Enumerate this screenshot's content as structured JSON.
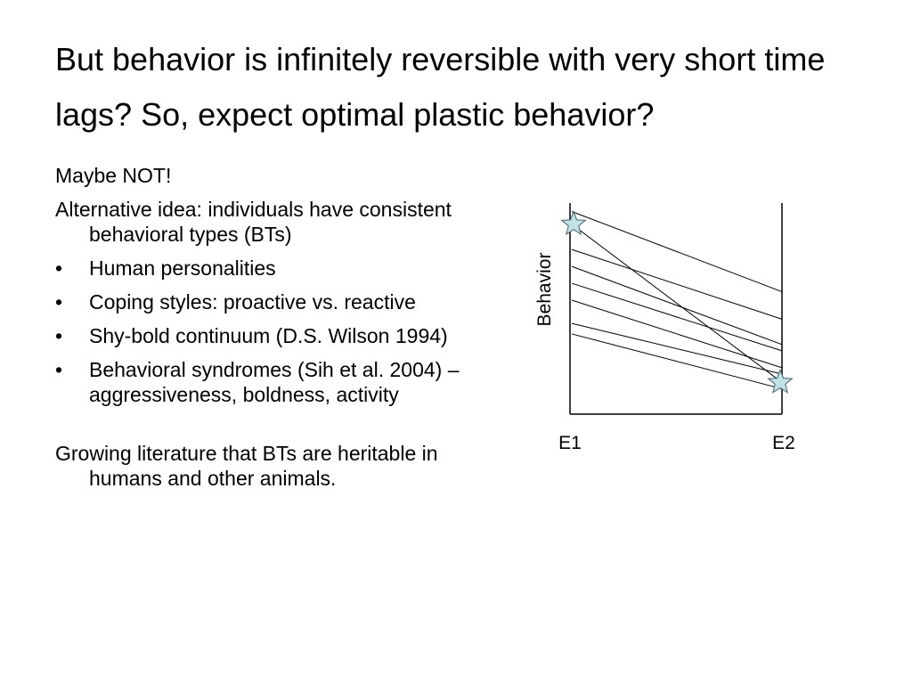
{
  "slide": {
    "title": "But behavior is infinitely reversible with very short time lags? So, expect optimal plastic behavior?"
  },
  "body": {
    "intro": "Maybe NOT!",
    "alternative": "Alternative idea: individuals have consistent behavioral types (BTs)",
    "bullet_symbol": "•",
    "bullets": [
      "Human personalities",
      "Coping styles: proactive vs. reactive",
      "Shy-bold continuum (D.S. Wilson 1994)",
      "Behavioral syndromes (Sih et al. 2004) – aggressiveness, boldness, activity"
    ],
    "conclusion": "Growing literature that BTs are heritable in humans and other animals."
  },
  "figure": {
    "ylabel": "Behavior",
    "xlabels": [
      "E1",
      "E2"
    ],
    "line_color": "#000000",
    "star_fill": "#bfe3e6",
    "star_stroke": "#4a6470",
    "lines": [
      {
        "e1": 9.6,
        "e2": 5.8
      },
      {
        "e1": 9.0,
        "e2": 1.5
      },
      {
        "e1": 7.8,
        "e2": 4.5
      },
      {
        "e1": 7.0,
        "e2": 3.3
      },
      {
        "e1": 6.2,
        "e2": 3.0
      },
      {
        "e1": 5.4,
        "e2": 2.2
      },
      {
        "e1": 4.3,
        "e2": 1.9
      },
      {
        "e1": 3.8,
        "e2": 1.2
      }
    ],
    "stars": [
      {
        "env": "E1",
        "value": 9.0
      },
      {
        "env": "E2",
        "value": 1.5
      }
    ]
  }
}
